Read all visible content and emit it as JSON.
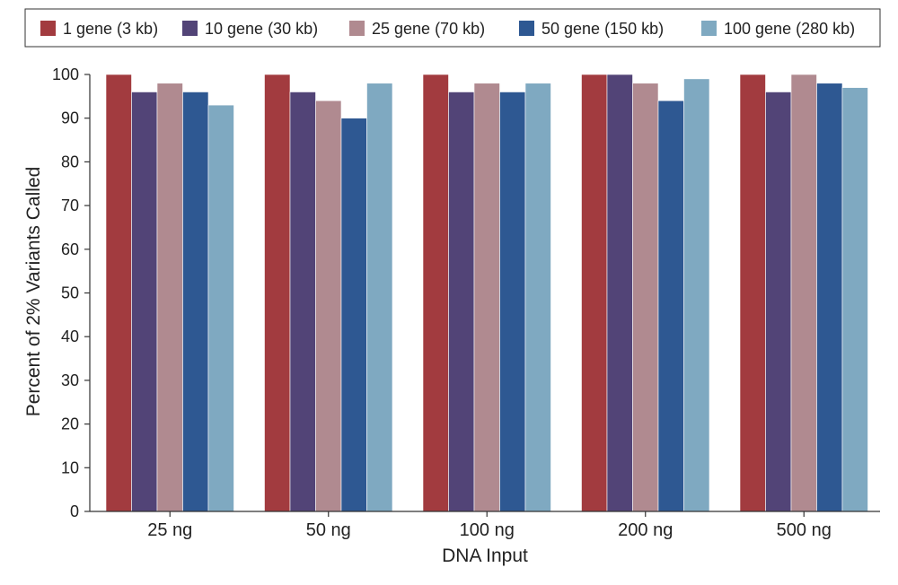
{
  "chart_data": {
    "type": "bar",
    "xlabel": "DNA Input",
    "ylabel": "Percent of 2% Variants Called",
    "ylim": [
      0,
      100
    ],
    "yticks": [
      0,
      10,
      20,
      30,
      40,
      50,
      60,
      70,
      80,
      90,
      100
    ],
    "grid": false,
    "legend_position": "top",
    "categories": [
      "25 ng",
      "50 ng",
      "100 ng",
      "200 ng",
      "500 ng"
    ],
    "series": [
      {
        "name": "1 gene (3 kb)",
        "color": "#a23b3f",
        "values": [
          100,
          100,
          100,
          100,
          100
        ]
      },
      {
        "name": "10 gene (30 kb)",
        "color": "#524477",
        "values": [
          96,
          96,
          96,
          100,
          96
        ]
      },
      {
        "name": "25 gene (70 kb)",
        "color": "#b08a90",
        "values": [
          98,
          94,
          98,
          98,
          100
        ]
      },
      {
        "name": "50 gene (150 kb)",
        "color": "#2e5892",
        "values": [
          96,
          90,
          96,
          94,
          98
        ]
      },
      {
        "name": "100 gene (280 kb)",
        "color": "#7fa9c1",
        "values": [
          93,
          98,
          98,
          99,
          97
        ]
      }
    ]
  }
}
